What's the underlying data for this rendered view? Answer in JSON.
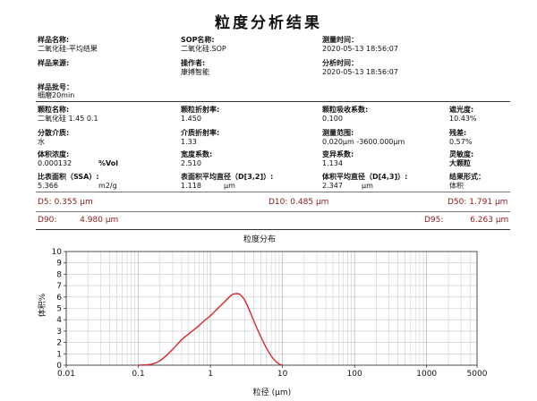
{
  "report": {
    "title": "粒度分析结果",
    "sample_name": {
      "label": "样品名称:",
      "value": "二氧化硅-平均结果"
    },
    "sop_name": {
      "label": "SOP名称:",
      "value": "二氧化硅.SOP"
    },
    "measure_time": {
      "label": "测量时间：",
      "value": "2020-05-13 18:56:07"
    },
    "sample_source": {
      "label": "样品来源:",
      "value": ""
    },
    "operator": {
      "label": "操作者:",
      "value": "康搏智能"
    },
    "analysis_time": {
      "label": "分析时间：",
      "value": "2020-05-13 18:56:07"
    },
    "batch": {
      "label": "样品批号：",
      "value": "细磨20min"
    },
    "particle_name": {
      "label": "颗粒名称:",
      "value": "二氧化硅 1.45 0.1"
    },
    "particle_ri": {
      "label": "颗粒折射率:",
      "value": "1.450"
    },
    "particle_abs": {
      "label": "颗粒吸收系数:",
      "value": "0.100"
    },
    "obscuration": {
      "label": "遮光度:",
      "value": "10.43%"
    },
    "dispersant": {
      "label": "分散介质:",
      "value": "水"
    },
    "medium_ri": {
      "label": "介质折射率:",
      "value": "1.33"
    },
    "measure_range": {
      "label": "测量范围:",
      "value": "0.020μm -3600.000μm"
    },
    "residual": {
      "label": "残差:",
      "value": "0.57%"
    },
    "volume_conc": {
      "label": "体积浓度:",
      "value": "0.000132",
      "unit": "%Vol"
    },
    "span": {
      "label": "宽度系数:",
      "value": "2.510"
    },
    "uniformity": {
      "label": "变异系数:",
      "value": "1.134"
    },
    "sensitivity": {
      "label": "灵敏度:",
      "value": "大颗粒"
    },
    "ssa": {
      "label": "比表面积（SSA）:",
      "value": "5.366",
      "unit": "m2/g"
    },
    "d32": {
      "label": "表面积平均直径（D[3,2]）:",
      "value": "1.118",
      "unit": "μm"
    },
    "d43": {
      "label": "体积平均直径（D[4,3]）:",
      "value": "2.347",
      "unit": "μm"
    },
    "result_form": {
      "label": "结果形式：",
      "value": "体积"
    }
  },
  "percentiles": {
    "d5": {
      "label": "D5:",
      "value": "0.355",
      "unit": "μm"
    },
    "d10": {
      "label": "D10:",
      "value": "0.485",
      "unit": "μm"
    },
    "d50": {
      "label": "D50:",
      "value": "1.791",
      "unit": "μm"
    },
    "d90": {
      "label": "D90:",
      "value": "4.980",
      "unit": "μm"
    },
    "d95": {
      "label": "D95:",
      "value": "6.263",
      "unit": "μm"
    }
  },
  "chart_data": {
    "type": "line",
    "title": "粒度分布",
    "xlabel": "粒径 (μm)",
    "ylabel": "体积%",
    "x_scale": "log",
    "xlim": [
      0.01,
      5000
    ],
    "ylim": [
      0,
      10
    ],
    "x_ticks": [
      0.01,
      0.1,
      1,
      10,
      100,
      1000,
      5000
    ],
    "x_tick_labels": [
      "0.01",
      "0.1",
      "1",
      "10",
      "100",
      "1000",
      "5000"
    ],
    "y_ticks": [
      0,
      1,
      2,
      3,
      4,
      5,
      6,
      7,
      8,
      9,
      10
    ],
    "y_tick_labels": [
      "0",
      "1",
      "2",
      "3",
      "4",
      "5",
      "6",
      "7",
      "8",
      "9",
      "10"
    ],
    "grid": true,
    "line_color": "#d62728",
    "series": [
      {
        "x": [
          0.1,
          0.13,
          0.16,
          0.2,
          0.25,
          0.3,
          0.35,
          0.4,
          0.5,
          0.6,
          0.7,
          0.8,
          1.0,
          1.2,
          1.5,
          1.8,
          2.0,
          2.3,
          2.6,
          3.0,
          3.5,
          4.0,
          5.0,
          6.0,
          7.0,
          8.0,
          9.0,
          10.0
        ],
        "y": [
          0.0,
          0.03,
          0.12,
          0.4,
          0.9,
          1.4,
          1.85,
          2.25,
          2.75,
          3.15,
          3.5,
          3.85,
          4.35,
          4.85,
          5.45,
          5.95,
          6.2,
          6.3,
          6.2,
          5.7,
          4.8,
          3.9,
          2.5,
          1.5,
          0.8,
          0.35,
          0.1,
          0.0
        ]
      }
    ]
  }
}
